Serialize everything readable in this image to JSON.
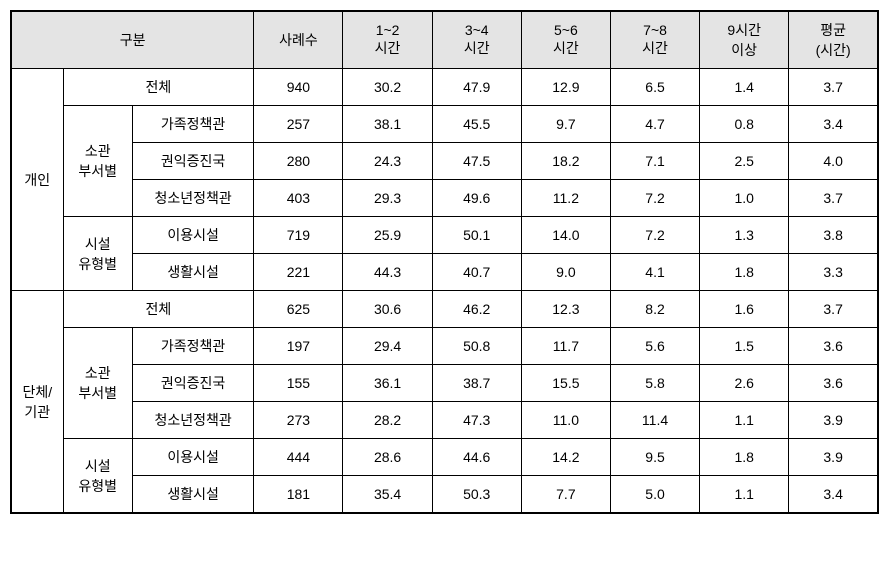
{
  "headers": {
    "category": "구분",
    "count": "사례수",
    "h1_2": "1~2\n시간",
    "h3_4": "3~4\n시간",
    "h5_6": "5~6\n시간",
    "h7_8": "7~8\n시간",
    "h9plus": "9시간\n이상",
    "avg": "평균\n(시간)"
  },
  "groups": [
    {
      "label": "개인",
      "sections": [
        {
          "label": "전체",
          "type": "total",
          "row": [
            "940",
            "30.2",
            "47.9",
            "12.9",
            "6.5",
            "1.4",
            "3.7"
          ]
        },
        {
          "label": "소관\n부서별",
          "type": "sub",
          "rows": [
            {
              "label": "가족정책관",
              "vals": [
                "257",
                "38.1",
                "45.5",
                "9.7",
                "4.7",
                "0.8",
                "3.4"
              ]
            },
            {
              "label": "권익증진국",
              "vals": [
                "280",
                "24.3",
                "47.5",
                "18.2",
                "7.1",
                "2.5",
                "4.0"
              ]
            },
            {
              "label": "청소년정책관",
              "vals": [
                "403",
                "29.3",
                "49.6",
                "11.2",
                "7.2",
                "1.0",
                "3.7"
              ]
            }
          ]
        },
        {
          "label": "시설\n유형별",
          "type": "sub",
          "rows": [
            {
              "label": "이용시설",
              "vals": [
                "719",
                "25.9",
                "50.1",
                "14.0",
                "7.2",
                "1.3",
                "3.8"
              ]
            },
            {
              "label": "생활시설",
              "vals": [
                "221",
                "44.3",
                "40.7",
                "9.0",
                "4.1",
                "1.8",
                "3.3"
              ]
            }
          ]
        }
      ]
    },
    {
      "label": "단체/\n기관",
      "sections": [
        {
          "label": "전체",
          "type": "total",
          "row": [
            "625",
            "30.6",
            "46.2",
            "12.3",
            "8.2",
            "1.6",
            "3.7"
          ]
        },
        {
          "label": "소관\n부서별",
          "type": "sub",
          "rows": [
            {
              "label": "가족정책관",
              "vals": [
                "197",
                "29.4",
                "50.8",
                "11.7",
                "5.6",
                "1.5",
                "3.6"
              ]
            },
            {
              "label": "권익증진국",
              "vals": [
                "155",
                "36.1",
                "38.7",
                "15.5",
                "5.8",
                "2.6",
                "3.6"
              ]
            },
            {
              "label": "청소년정책관",
              "vals": [
                "273",
                "28.2",
                "47.3",
                "11.0",
                "11.4",
                "1.1",
                "3.9"
              ]
            }
          ]
        },
        {
          "label": "시설\n유형별",
          "type": "sub",
          "rows": [
            {
              "label": "이용시설",
              "vals": [
                "444",
                "28.6",
                "44.6",
                "14.2",
                "9.5",
                "1.8",
                "3.9"
              ]
            },
            {
              "label": "생활시설",
              "vals": [
                "181",
                "35.4",
                "50.3",
                "7.7",
                "5.0",
                "1.1",
                "3.4"
              ]
            }
          ]
        }
      ]
    }
  ]
}
